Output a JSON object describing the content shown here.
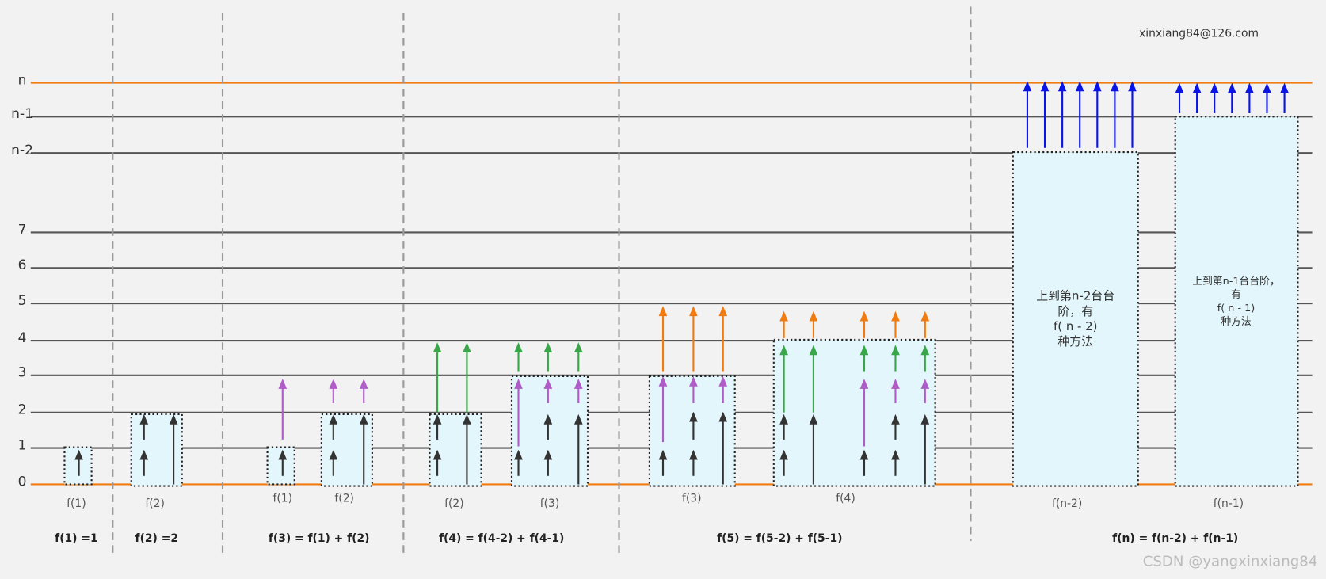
{
  "levels": [
    "0",
    "1",
    "2",
    "3",
    "4",
    "5",
    "6",
    "7",
    "n-2",
    "n-1",
    "n"
  ],
  "email": "xinxiang84@126.com",
  "watermark": "CSDN @yangxinxiang84",
  "box_labels": [
    "f(1)",
    "f(2)",
    "f(1)",
    "f(2)",
    "f(2)",
    "f(3)",
    "f(3)",
    "f(4)",
    "f(n-2)",
    "f(n-1)"
  ],
  "formulas": [
    "f(1)  =1",
    "f(2)  =2",
    "f(3)  = f(1) + f(2)",
    "f(4)  = f(4-2) + f(4-1)",
    "f(5)  = f(5-2) + f(5-1)",
    "f(n)  = f(n-2) + f(n-1)"
  ],
  "notes": [
    [
      "上到第n-2台台",
      "阶，有",
      "f( n - 2)",
      "种方法"
    ],
    [
      "上到第n-1台台阶，",
      "有",
      "f( n - 1)",
      "种方法"
    ]
  ]
}
